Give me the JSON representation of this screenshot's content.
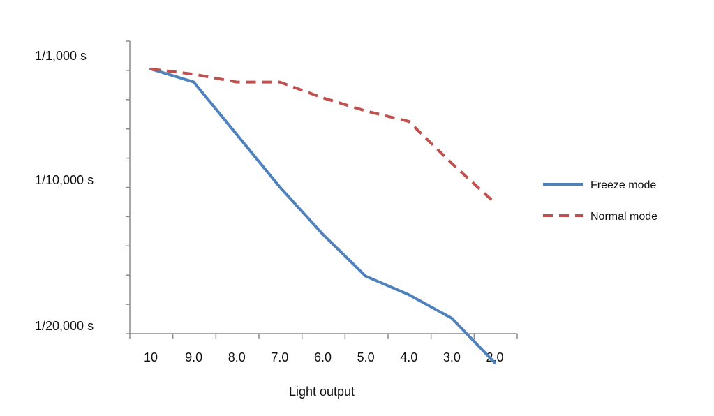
{
  "chart_data": {
    "type": "line",
    "title": "",
    "xlabel": "Light output",
    "ylabel": "",
    "categories": [
      "10",
      "9.0",
      "8.0",
      "7.0",
      "6.0",
      "5.0",
      "4.0",
      "3.0",
      "2.0"
    ],
    "y_tick_labels": [
      "1/1,000 s",
      "1/10,000 s",
      "1/20,000 s"
    ],
    "y_tick_levels": [
      0,
      0.5,
      1
    ],
    "y_level_range": [
      0,
      1
    ],
    "y_level_note_direction": "top-to-bottom",
    "grid": false,
    "legend_position": "right",
    "series": [
      {
        "name": "Freeze mode",
        "color": "#4f81bd",
        "style": "solid",
        "x_positions": [
          0,
          1,
          2,
          3,
          4,
          5,
          6,
          7,
          8
        ],
        "values": [
          0.05,
          0.1,
          0.3,
          0.5,
          0.68,
          0.84,
          0.91,
          1.0,
          1.17
        ]
      },
      {
        "name": "Normal mode",
        "color": "#c0504d",
        "style": "dashed",
        "x_positions": [
          0,
          1,
          2,
          3,
          4,
          5,
          6,
          7,
          8
        ],
        "values": [
          0.05,
          0.07,
          0.1,
          0.1,
          0.16,
          0.21,
          0.25,
          0.41,
          0.56
        ]
      }
    ]
  }
}
